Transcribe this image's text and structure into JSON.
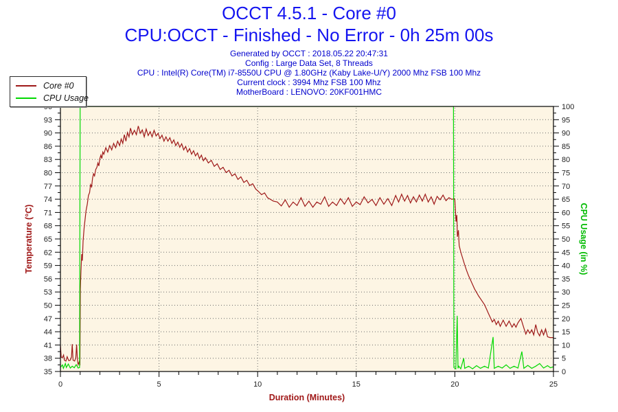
{
  "header": {
    "title_line1": "OCCT 4.5.1 - Core #0",
    "title_line2": "CPU:OCCT - Finished - No Error - 0h 25m 00s",
    "title_color": "#1414f0",
    "meta_color": "#0000cd",
    "meta_lines": [
      "Generated by OCCT : 2018.05.22 20:47:31",
      "Config : Large Data Set, 8 Threads",
      "CPU : Intel(R) Core(TM) i7-8550U CPU @ 1.80GHz (Kaby Lake-U/Y) 2000 Mhz FSB 100 Mhz",
      "Current clock : 3994 Mhz FSB 100 Mhz",
      "MotherBoard : LENOVO: 20KF001HMC"
    ]
  },
  "legend": {
    "items": [
      {
        "label": "Core #0",
        "color": "#9e1818"
      },
      {
        "label": "CPU Usage",
        "color": "#00d800"
      }
    ]
  },
  "chart_data": {
    "type": "line",
    "plot_bg": "#fdf5e4",
    "grid": {
      "dotted": true,
      "color": "#6a6a6a"
    },
    "x_axis": {
      "label": "Duration (Minutes)",
      "label_color": "#a01818",
      "min": 0,
      "max": 25,
      "major_ticks": [
        0,
        5,
        10,
        15,
        20,
        25
      ],
      "minor_step": 1
    },
    "y_left": {
      "label": "Temperature (°C)",
      "label_color": "#a01818",
      "min": 35,
      "max": 96,
      "tick_labels_top_to_bottom": [
        "96",
        "93",
        "90",
        "86",
        "83",
        "80",
        "77",
        "74",
        "71",
        "68",
        "65",
        "62",
        "59",
        "56",
        "53",
        "50",
        "47",
        "44",
        "41",
        "38",
        "35"
      ]
    },
    "y_right": {
      "label": "CPU Usage (in %)",
      "label_color": "#00bb00",
      "min": 0,
      "max": 100,
      "tick_labels_top_to_bottom": [
        "100",
        "95",
        "90",
        "85",
        "80",
        "75",
        "70",
        "65",
        "60",
        "55",
        "50",
        "45",
        "40",
        "35",
        "30",
        "25",
        "20",
        "15",
        "10",
        "5",
        "0"
      ]
    },
    "series": [
      {
        "name": "Core #0",
        "axis": "left",
        "color": "#9e1818",
        "points": [
          [
            0,
            41
          ],
          [
            0.04,
            38.3
          ],
          [
            0.1,
            38.2
          ],
          [
            0.16,
            38.8
          ],
          [
            0.2,
            37.6
          ],
          [
            0.28,
            37.4
          ],
          [
            0.34,
            38.4
          ],
          [
            0.42,
            37.5
          ],
          [
            0.5,
            37.6
          ],
          [
            0.56,
            38.3
          ],
          [
            0.6,
            41.3
          ],
          [
            0.64,
            37.6
          ],
          [
            0.72,
            37.4
          ],
          [
            0.78,
            38.2
          ],
          [
            0.82,
            41.2
          ],
          [
            0.86,
            37.8
          ],
          [
            0.9,
            36.6
          ],
          [
            0.95,
            37.2
          ],
          [
            0.99,
            36.4
          ],
          [
            1.01,
            54
          ],
          [
            1.04,
            58
          ],
          [
            1.08,
            62
          ],
          [
            1.11,
            60.5
          ],
          [
            1.15,
            65
          ],
          [
            1.2,
            68
          ],
          [
            1.25,
            70
          ],
          [
            1.3,
            72
          ],
          [
            1.36,
            73.5
          ],
          [
            1.42,
            75.5
          ],
          [
            1.48,
            76.2
          ],
          [
            1.53,
            78
          ],
          [
            1.58,
            77.5
          ],
          [
            1.63,
            79.5
          ],
          [
            1.68,
            80.5
          ],
          [
            1.73,
            80
          ],
          [
            1.79,
            81.5
          ],
          [
            1.85,
            82
          ],
          [
            1.9,
            83
          ],
          [
            1.95,
            82.3
          ],
          [
            2.0,
            84
          ],
          [
            2.05,
            84.8
          ],
          [
            2.1,
            84
          ],
          [
            2.15,
            85.5
          ],
          [
            2.2,
            85
          ],
          [
            2.3,
            86.5
          ],
          [
            2.4,
            85.5
          ],
          [
            2.5,
            87
          ],
          [
            2.6,
            86
          ],
          [
            2.7,
            87.5
          ],
          [
            2.8,
            86.5
          ],
          [
            2.9,
            88
          ],
          [
            3.0,
            87
          ],
          [
            3.08,
            88.5
          ],
          [
            3.16,
            87.5
          ],
          [
            3.24,
            89.5
          ],
          [
            3.32,
            88
          ],
          [
            3.4,
            90
          ],
          [
            3.48,
            89
          ],
          [
            3.55,
            91
          ],
          [
            3.65,
            89.5
          ],
          [
            3.75,
            90.5
          ],
          [
            3.85,
            89.5
          ],
          [
            3.95,
            91.5
          ],
          [
            4.05,
            89.8
          ],
          [
            4.15,
            90.6
          ],
          [
            4.25,
            89
          ],
          [
            4.35,
            90.8
          ],
          [
            4.45,
            89.3
          ],
          [
            4.55,
            90.2
          ],
          [
            4.65,
            89
          ],
          [
            4.75,
            90.5
          ],
          [
            4.85,
            89.2
          ],
          [
            4.95,
            89.8
          ],
          [
            5.05,
            88.6
          ],
          [
            5.15,
            89.4
          ],
          [
            5.25,
            88
          ],
          [
            5.35,
            89
          ],
          [
            5.45,
            88
          ],
          [
            5.55,
            88.8
          ],
          [
            5.65,
            87.5
          ],
          [
            5.75,
            88.3
          ],
          [
            5.85,
            87
          ],
          [
            5.95,
            87.8
          ],
          [
            6.05,
            86.6
          ],
          [
            6.15,
            87.4
          ],
          [
            6.25,
            86
          ],
          [
            6.35,
            86.8
          ],
          [
            6.45,
            85.5
          ],
          [
            6.55,
            86.3
          ],
          [
            6.65,
            85
          ],
          [
            6.75,
            85.8
          ],
          [
            6.85,
            84.6
          ],
          [
            6.95,
            85.3
          ],
          [
            7.05,
            84
          ],
          [
            7.15,
            84.8
          ],
          [
            7.25,
            83.5
          ],
          [
            7.35,
            84.2
          ],
          [
            7.5,
            83
          ],
          [
            7.65,
            83.6
          ],
          [
            7.8,
            82.2
          ],
          [
            7.95,
            82.8
          ],
          [
            8.1,
            81.5
          ],
          [
            8.25,
            82
          ],
          [
            8.4,
            80.8
          ],
          [
            8.55,
            81.3
          ],
          [
            8.7,
            80
          ],
          [
            8.85,
            80.5
          ],
          [
            9.0,
            79.2
          ],
          [
            9.15,
            79.8
          ],
          [
            9.3,
            78.5
          ],
          [
            9.45,
            79
          ],
          [
            9.6,
            77.8
          ],
          [
            9.75,
            78.2
          ],
          [
            9.9,
            77
          ],
          [
            10.05,
            76.4
          ],
          [
            10.2,
            75.7
          ],
          [
            10.35,
            76.1
          ],
          [
            10.5,
            75
          ],
          [
            10.65,
            74.6
          ],
          [
            10.8,
            74.2
          ],
          [
            11.0,
            74
          ],
          [
            11.2,
            73.1
          ],
          [
            11.4,
            74.5
          ],
          [
            11.6,
            72.8
          ],
          [
            11.8,
            74
          ],
          [
            12.0,
            73.2
          ],
          [
            12.2,
            75
          ],
          [
            12.4,
            73
          ],
          [
            12.6,
            74.2
          ],
          [
            12.8,
            72.8
          ],
          [
            13.0,
            74
          ],
          [
            13.2,
            73.5
          ],
          [
            13.4,
            75.2
          ],
          [
            13.6,
            73
          ],
          [
            13.8,
            74
          ],
          [
            14.0,
            73.2
          ],
          [
            14.2,
            74.8
          ],
          [
            14.4,
            73.5
          ],
          [
            14.6,
            75
          ],
          [
            14.8,
            73
          ],
          [
            15.0,
            74
          ],
          [
            15.2,
            73.4
          ],
          [
            15.4,
            75.2
          ],
          [
            15.6,
            73.8
          ],
          [
            15.8,
            74.6
          ],
          [
            16.0,
            73.2
          ],
          [
            16.2,
            75
          ],
          [
            16.4,
            73.5
          ],
          [
            16.6,
            74.8
          ],
          [
            16.8,
            73.2
          ],
          [
            17.0,
            75.5
          ],
          [
            17.15,
            74
          ],
          [
            17.3,
            75.8
          ],
          [
            17.45,
            74.2
          ],
          [
            17.6,
            75.5
          ],
          [
            17.75,
            73.8
          ],
          [
            17.9,
            75.2
          ],
          [
            18.05,
            74
          ],
          [
            18.2,
            75.6
          ],
          [
            18.35,
            74.2
          ],
          [
            18.5,
            75.8
          ],
          [
            18.65,
            74
          ],
          [
            18.8,
            75.2
          ],
          [
            18.95,
            73.5
          ],
          [
            19.1,
            75.3
          ],
          [
            19.25,
            74.5
          ],
          [
            19.4,
            75.6
          ],
          [
            19.55,
            74.3
          ],
          [
            19.7,
            75
          ],
          [
            19.85,
            74.6
          ],
          [
            19.97,
            74.8
          ],
          [
            20.0,
            74.5
          ],
          [
            20.03,
            72
          ],
          [
            20.06,
            69.5
          ],
          [
            20.1,
            71
          ],
          [
            20.13,
            66
          ],
          [
            20.18,
            67.5
          ],
          [
            20.22,
            64
          ],
          [
            20.3,
            62.5
          ],
          [
            20.4,
            61
          ],
          [
            20.5,
            59.5
          ],
          [
            20.6,
            58.2
          ],
          [
            20.7,
            57
          ],
          [
            20.8,
            56
          ],
          [
            20.9,
            55
          ],
          [
            21.0,
            54
          ],
          [
            21.1,
            53.2
          ],
          [
            21.2,
            52.4
          ],
          [
            21.35,
            51.4
          ],
          [
            21.5,
            50.4
          ],
          [
            21.6,
            49.4
          ],
          [
            21.7,
            48.4
          ],
          [
            21.8,
            47.4
          ],
          [
            21.9,
            46.4
          ],
          [
            22.0,
            47
          ],
          [
            22.1,
            45.8
          ],
          [
            22.2,
            46.6
          ],
          [
            22.3,
            45.4
          ],
          [
            22.45,
            46.8
          ],
          [
            22.6,
            45.4
          ],
          [
            22.75,
            46.6
          ],
          [
            22.9,
            45.2
          ],
          [
            23.0,
            46
          ],
          [
            23.1,
            45.2
          ],
          [
            23.2,
            46.2
          ],
          [
            23.35,
            47.2
          ],
          [
            23.5,
            45
          ],
          [
            23.6,
            43.6
          ],
          [
            23.7,
            44.6
          ],
          [
            23.8,
            43.8
          ],
          [
            23.9,
            44.6
          ],
          [
            24.0,
            43.4
          ],
          [
            24.1,
            45.8
          ],
          [
            24.2,
            44
          ],
          [
            24.3,
            43.2
          ],
          [
            24.4,
            44.6
          ],
          [
            24.5,
            43.4
          ],
          [
            24.6,
            44.8
          ],
          [
            24.7,
            43
          ],
          [
            24.82,
            42.8
          ],
          [
            25.0,
            42.8
          ]
        ]
      },
      {
        "name": "CPU Usage",
        "axis": "right",
        "color": "#00d800",
        "points": [
          [
            0,
            1.5
          ],
          [
            0.1,
            2.5
          ],
          [
            0.15,
            1.2
          ],
          [
            0.25,
            3
          ],
          [
            0.3,
            1.5
          ],
          [
            0.4,
            2.8
          ],
          [
            0.5,
            1.3
          ],
          [
            0.6,
            2
          ],
          [
            0.7,
            1.4
          ],
          [
            0.8,
            2.6
          ],
          [
            0.9,
            1.3
          ],
          [
            0.97,
            1.5
          ],
          [
            1.0,
            100
          ],
          [
            19.93,
            100
          ],
          [
            19.95,
            1.5
          ],
          [
            20.05,
            1
          ],
          [
            20.12,
            21
          ],
          [
            20.16,
            1.2
          ],
          [
            20.2,
            2
          ],
          [
            20.3,
            1
          ],
          [
            20.45,
            5
          ],
          [
            20.5,
            1.2
          ],
          [
            20.7,
            2
          ],
          [
            20.9,
            1
          ],
          [
            21.1,
            2.2
          ],
          [
            21.3,
            1.2
          ],
          [
            21.5,
            2
          ],
          [
            21.7,
            1.3
          ],
          [
            21.94,
            13
          ],
          [
            22.0,
            1.2
          ],
          [
            22.2,
            2
          ],
          [
            22.4,
            1.3
          ],
          [
            22.6,
            2.5
          ],
          [
            22.8,
            1.2
          ],
          [
            23.0,
            2
          ],
          [
            23.2,
            1.3
          ],
          [
            23.4,
            7.5
          ],
          [
            23.5,
            1.2
          ],
          [
            23.7,
            2.3
          ],
          [
            23.9,
            1.2
          ],
          [
            24.1,
            2
          ],
          [
            24.3,
            3
          ],
          [
            24.5,
            1.3
          ],
          [
            24.7,
            2.2
          ],
          [
            24.85,
            1.4
          ],
          [
            25.0,
            1.8
          ]
        ]
      }
    ]
  }
}
